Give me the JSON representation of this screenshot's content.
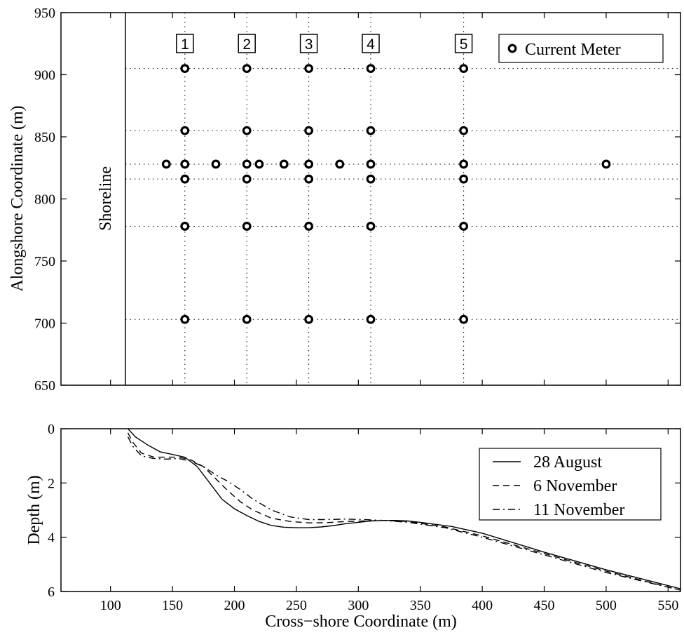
{
  "chart_data": [
    {
      "type": "scatter",
      "ylabel": "Alongshore Coordinate (m)",
      "xlim": [
        60,
        560
      ],
      "ylim": [
        650,
        950
      ],
      "yticks": [
        650,
        700,
        750,
        800,
        850,
        900,
        950
      ],
      "grid": "dotted gridlines through instrument positions",
      "shoreline_x": 112,
      "shoreline_label": "Shoreline",
      "transects": [
        {
          "label": "1",
          "x": 160
        },
        {
          "label": "2",
          "x": 210
        },
        {
          "label": "3",
          "x": 260
        },
        {
          "label": "4",
          "x": 310
        },
        {
          "label": "5",
          "x": 385
        }
      ],
      "gridline_y": [
        905,
        855,
        828,
        816,
        778,
        703
      ],
      "legend": {
        "label": "Current Meter",
        "position": "top-right"
      },
      "points": [
        {
          "x": 160,
          "y": 905
        },
        {
          "x": 210,
          "y": 905
        },
        {
          "x": 260,
          "y": 905
        },
        {
          "x": 310,
          "y": 905
        },
        {
          "x": 385,
          "y": 905
        },
        {
          "x": 160,
          "y": 855
        },
        {
          "x": 210,
          "y": 855
        },
        {
          "x": 260,
          "y": 855
        },
        {
          "x": 310,
          "y": 855
        },
        {
          "x": 385,
          "y": 855
        },
        {
          "x": 145,
          "y": 828
        },
        {
          "x": 160,
          "y": 828
        },
        {
          "x": 185,
          "y": 828
        },
        {
          "x": 210,
          "y": 828
        },
        {
          "x": 220,
          "y": 828
        },
        {
          "x": 240,
          "y": 828
        },
        {
          "x": 260,
          "y": 828
        },
        {
          "x": 285,
          "y": 828
        },
        {
          "x": 310,
          "y": 828
        },
        {
          "x": 385,
          "y": 828
        },
        {
          "x": 500,
          "y": 828
        },
        {
          "x": 160,
          "y": 816
        },
        {
          "x": 210,
          "y": 816
        },
        {
          "x": 260,
          "y": 816
        },
        {
          "x": 310,
          "y": 816
        },
        {
          "x": 385,
          "y": 816
        },
        {
          "x": 160,
          "y": 778
        },
        {
          "x": 210,
          "y": 778
        },
        {
          "x": 260,
          "y": 778
        },
        {
          "x": 310,
          "y": 778
        },
        {
          "x": 385,
          "y": 778
        },
        {
          "x": 160,
          "y": 703
        },
        {
          "x": 210,
          "y": 703
        },
        {
          "x": 260,
          "y": 703
        },
        {
          "x": 310,
          "y": 703
        },
        {
          "x": 385,
          "y": 703
        }
      ]
    },
    {
      "type": "line",
      "xlabel": "Cross−shore Coordinate (m)",
      "ylabel": "Depth (m)",
      "xlim": [
        60,
        560
      ],
      "ylim": [
        0,
        6
      ],
      "y_inverted": true,
      "xticks": [
        100,
        150,
        200,
        250,
        300,
        350,
        400,
        450,
        500,
        550
      ],
      "yticks": [
        0,
        2,
        4,
        6
      ],
      "legend_position": "top-right",
      "series": [
        {
          "name": "28 August",
          "style": "solid",
          "x": [
            114,
            120,
            130,
            140,
            150,
            160,
            170,
            180,
            190,
            200,
            210,
            220,
            230,
            240,
            250,
            260,
            270,
            280,
            290,
            300,
            310,
            320,
            330,
            340,
            350,
            375,
            400,
            450,
            500,
            560
          ],
          "y": [
            0.0,
            0.3,
            0.6,
            0.85,
            0.95,
            1.05,
            1.4,
            2.0,
            2.6,
            2.95,
            3.2,
            3.42,
            3.57,
            3.63,
            3.65,
            3.65,
            3.62,
            3.57,
            3.5,
            3.45,
            3.4,
            3.38,
            3.38,
            3.4,
            3.45,
            3.6,
            3.85,
            4.55,
            5.2,
            5.9
          ]
        },
        {
          "name": "6 November",
          "style": "dashed",
          "x": [
            114,
            118,
            125,
            135,
            145,
            155,
            165,
            175,
            185,
            195,
            205,
            215,
            230,
            245,
            260,
            275,
            290,
            305,
            320,
            340,
            370,
            400,
            450,
            500,
            560
          ],
          "y": [
            0.15,
            0.5,
            0.9,
            1.05,
            1.05,
            1.05,
            1.15,
            1.4,
            1.85,
            2.3,
            2.7,
            3.0,
            3.3,
            3.42,
            3.47,
            3.46,
            3.42,
            3.4,
            3.38,
            3.42,
            3.62,
            3.95,
            4.6,
            5.25,
            5.95
          ]
        },
        {
          "name": "11 November",
          "style": "dashdot",
          "x": [
            114,
            118,
            125,
            135,
            145,
            155,
            165,
            175,
            185,
            195,
            205,
            215,
            230,
            245,
            260,
            275,
            290,
            305,
            320,
            340,
            370,
            400,
            450,
            500,
            560
          ],
          "y": [
            0.3,
            0.65,
            1.0,
            1.1,
            1.12,
            1.1,
            1.2,
            1.4,
            1.7,
            1.95,
            2.25,
            2.6,
            3.0,
            3.25,
            3.35,
            3.35,
            3.33,
            3.35,
            3.38,
            3.45,
            3.65,
            4.0,
            4.65,
            5.3,
            5.95
          ]
        }
      ]
    }
  ]
}
